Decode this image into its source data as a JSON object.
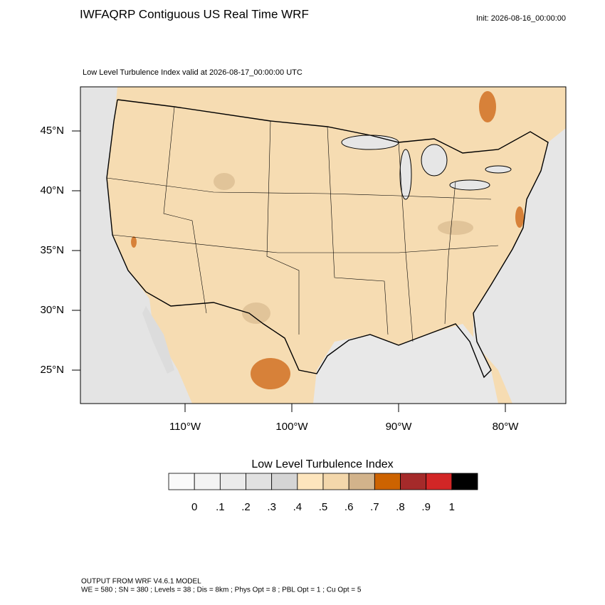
{
  "header": {
    "title": "IWFAQRP Contiguous US Real Time WRF",
    "init": "Init: 2026-08-16_00:00:00"
  },
  "map": {
    "subtitle": "Low Level Turbulence Index valid at 2026-08-17_00:00:00 UTC",
    "lat_ticks": [
      {
        "value": 45,
        "label": "45°N"
      },
      {
        "value": 40,
        "label": "40°N"
      },
      {
        "value": 35,
        "label": "35°N"
      },
      {
        "value": 30,
        "label": "30°N"
      },
      {
        "value": 25,
        "label": "25°N"
      }
    ],
    "lon_ticks": [
      {
        "value": -110,
        "label": "110°W"
      },
      {
        "value": -100,
        "label": "100°W"
      },
      {
        "value": -90,
        "label": "90°W"
      },
      {
        "value": -80,
        "label": "80°W"
      }
    ]
  },
  "colorbar": {
    "title": "Low Level Turbulence Index",
    "colors": [
      "#fafafa",
      "#f3f3f3",
      "#ebebeb",
      "#e1e1e1",
      "#d5d5d5",
      "#fde5bd",
      "#f3d7ab",
      "#d2b38b",
      "#cd6300",
      "#a52a2a",
      "#d22626",
      "#000000"
    ],
    "labels": [
      "0",
      ".1",
      ".2",
      ".3",
      ".4",
      ".5",
      ".6",
      ".7",
      ".8",
      ".9",
      "1"
    ]
  },
  "footer": {
    "line1": "OUTPUT FROM WRF V4.6.1 MODEL",
    "line2": "WE = 580 ; SN = 380 ; Levels = 38 ; Dis = 8km ; Phys Opt = 8 ; PBL Opt = 1 ; Cu Opt = 5"
  }
}
